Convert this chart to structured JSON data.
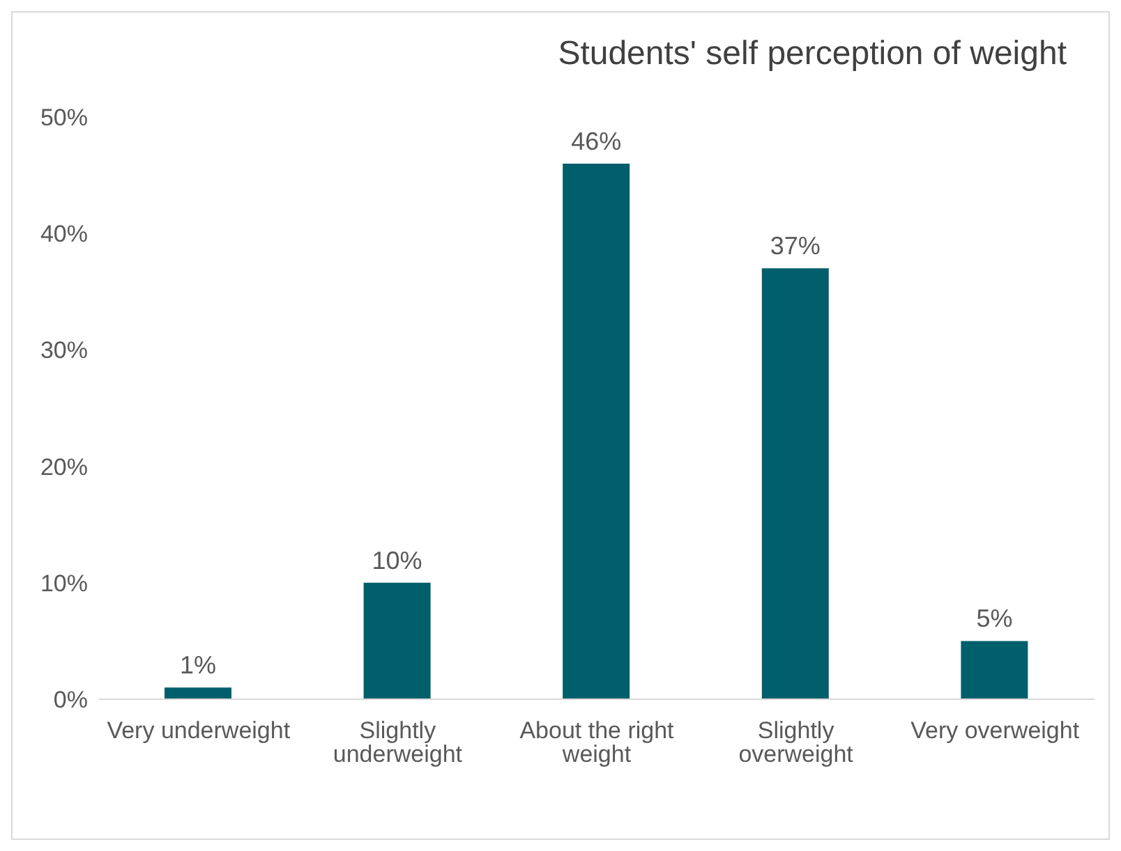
{
  "chart_data": {
    "type": "bar",
    "title": "Students' self perception  of weight",
    "categories": [
      "Very underweight",
      "Slightly underweight",
      "About the right weight",
      "Slightly overweight",
      "Very overweight"
    ],
    "values": [
      1,
      10,
      46,
      37,
      5
    ],
    "value_labels": [
      "1%",
      "10%",
      "46%",
      "37%",
      "5%"
    ],
    "color": "#005f6b",
    "ylim": [
      0,
      50
    ],
    "yticks": [
      {
        "value": 0,
        "label": "0%"
      },
      {
        "value": 10,
        "label": "10%"
      },
      {
        "value": 20,
        "label": "20%"
      },
      {
        "value": 30,
        "label": "30%"
      },
      {
        "value": 40,
        "label": "40%"
      },
      {
        "value": 50,
        "label": "50%"
      }
    ],
    "grid": false,
    "legend": false
  }
}
